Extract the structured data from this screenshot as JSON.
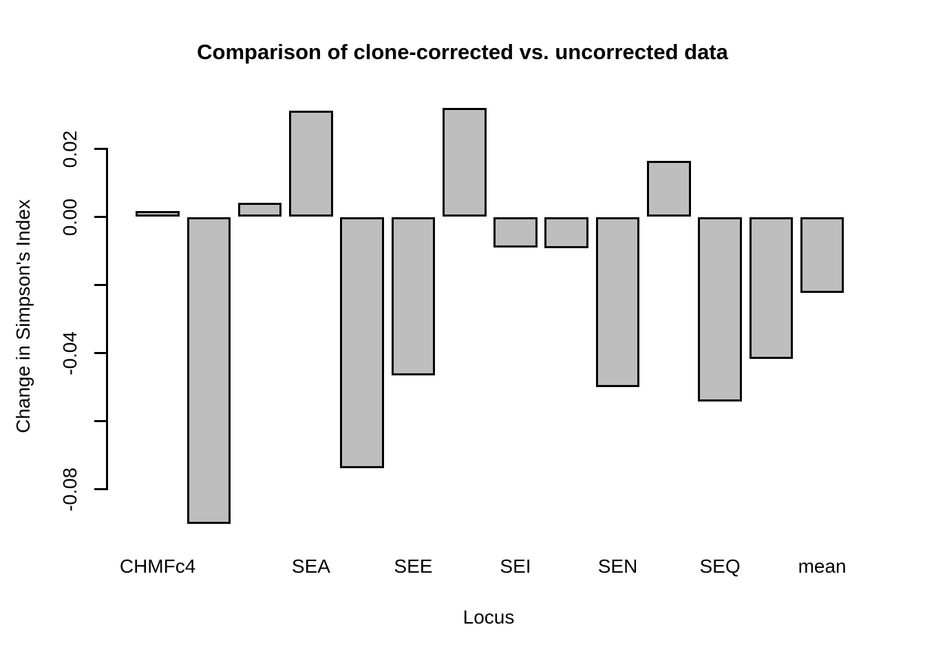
{
  "colors": {
    "background": "#ffffff",
    "bar_fill": "#bebebe",
    "bar_border": "#000000",
    "text": "#000000"
  },
  "chart_data": {
    "type": "bar",
    "title": "Comparison of clone-corrected vs. uncorrected data",
    "xlabel": "Locus",
    "ylabel": "Change in Simpson's Index",
    "categories": [
      "CHMFc4",
      "",
      "",
      "SEA",
      "",
      "SEE",
      "",
      "SEI",
      "",
      "SEN",
      "",
      "SEQ",
      "",
      "mean"
    ],
    "values": [
      0.0017,
      -0.0903,
      0.0042,
      0.0312,
      -0.0739,
      -0.0465,
      0.032,
      -0.009,
      -0.0092,
      -0.0499,
      0.0164,
      -0.0543,
      -0.0418,
      -0.0223
    ],
    "y_ticks": {
      "values": [
        0.02,
        0.0,
        -0.02,
        -0.04,
        -0.06,
        -0.08
      ],
      "labels": [
        "0.02",
        "0.00",
        "",
        "-0.04",
        "",
        "-0.08"
      ]
    },
    "ylim": [
      -0.0925,
      0.033
    ],
    "grid": false,
    "legend": null,
    "bar_fill": "#bebebe",
    "bar_border": "#000000"
  }
}
